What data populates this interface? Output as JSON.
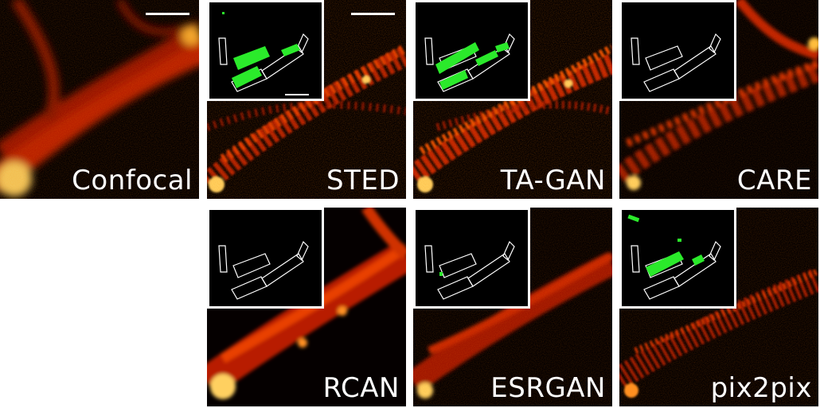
{
  "panels": {
    "confocal": {
      "label": "Confocal"
    },
    "sted": {
      "label": "STED"
    },
    "tagan": {
      "label": "TA-GAN"
    },
    "care": {
      "label": "CARE"
    },
    "rcan": {
      "label": "RCAN"
    },
    "esrgan": {
      "label": "ESRGAN"
    },
    "pix2pix": {
      "label": "pix2pix"
    }
  },
  "colors": {
    "background": "#000000",
    "signal": "#ff4a00",
    "highlight": "#ffe08a",
    "segmentation": "#2bea2b",
    "outline": "#ffffff"
  }
}
